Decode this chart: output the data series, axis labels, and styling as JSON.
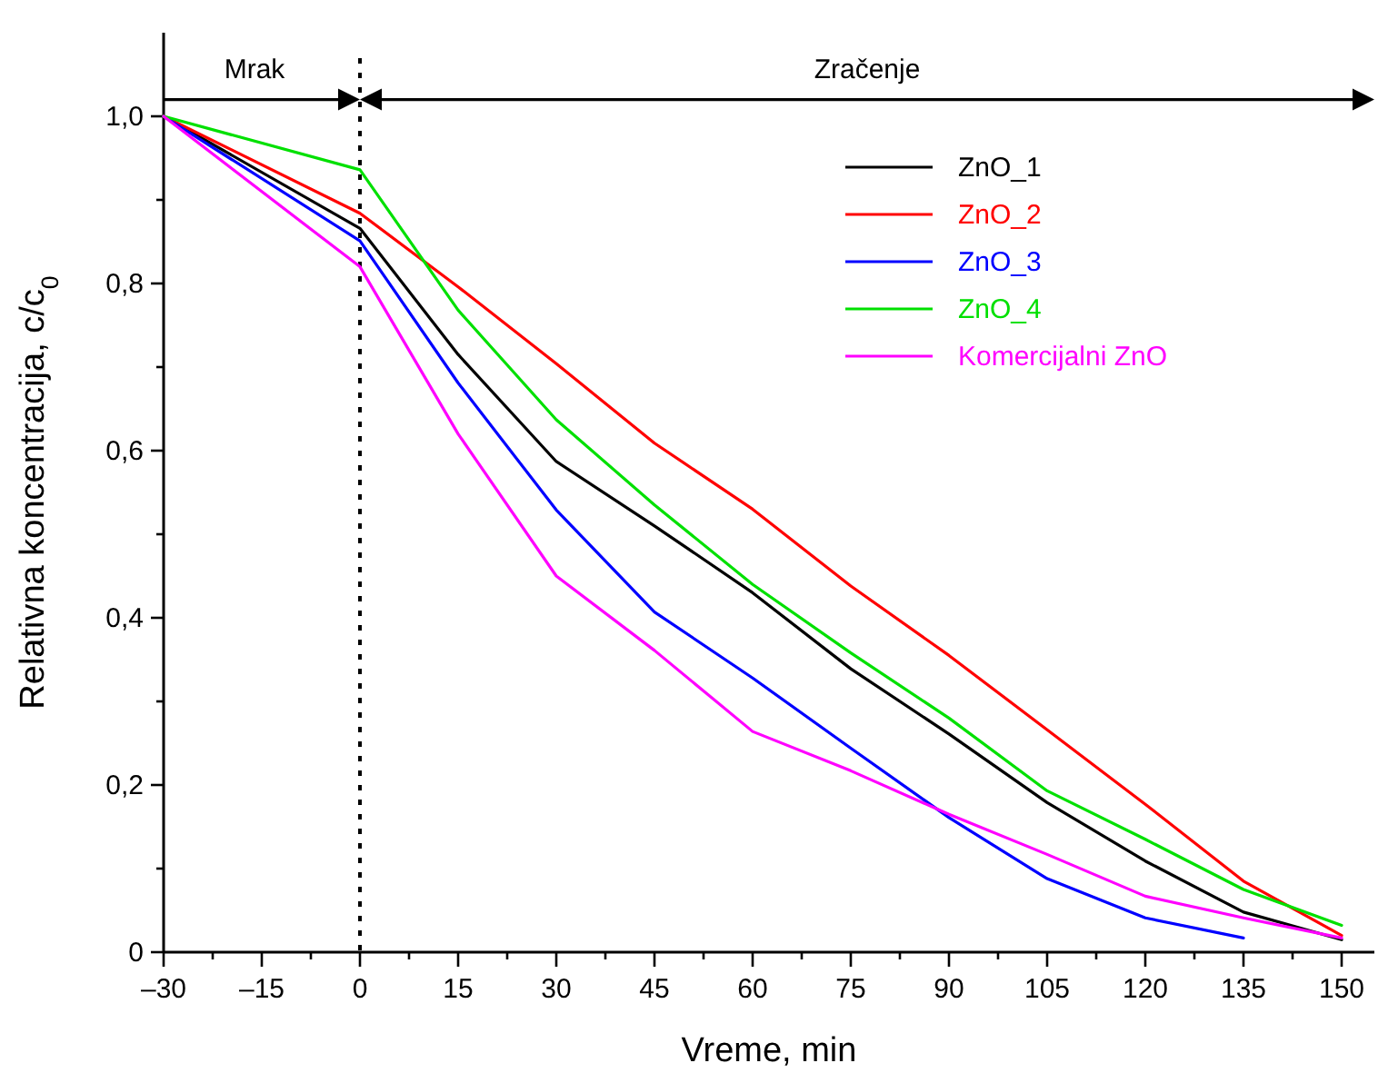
{
  "chart_data": {
    "type": "line",
    "xlabel": "Vreme, min",
    "ylabel": "Relativna koncentracija, c/c$_{0}$",
    "x": [
      -30,
      0,
      15,
      30,
      45,
      60,
      75,
      90,
      105,
      120,
      135,
      150
    ],
    "xlim": [
      -30,
      155
    ],
    "ylim": [
      0,
      1.1
    ],
    "xticks": [
      {
        "value": -30,
        "label": "–30"
      },
      {
        "value": -22.5,
        "label": null
      },
      {
        "value": -15,
        "label": "–15"
      },
      {
        "value": -7.5,
        "label": null
      },
      0,
      {
        "value": 7.5,
        "label": null
      },
      15,
      {
        "value": 22.5,
        "label": null
      },
      30,
      {
        "value": 37.5,
        "label": null
      },
      45,
      {
        "value": 52.5,
        "label": null
      },
      60,
      {
        "value": 67.5,
        "label": null
      },
      75,
      {
        "value": 82.5,
        "label": null
      },
      90,
      {
        "value": 97.5,
        "label": null
      },
      105,
      {
        "value": 112.5,
        "label": null
      },
      120,
      {
        "value": 127.5,
        "label": null
      },
      135,
      {
        "value": 142.5,
        "label": null
      },
      150
    ],
    "yticks": [
      {
        "value": 0,
        "label": "0"
      },
      {
        "value": 0.1,
        "label": null
      },
      {
        "value": 0.2,
        "label": "0,2"
      },
      {
        "value": 0.3,
        "label": null
      },
      {
        "value": 0.4,
        "label": "0,4"
      },
      {
        "value": 0.5,
        "label": null
      },
      {
        "value": 0.6,
        "label": "0,6"
      },
      {
        "value": 0.7,
        "label": null
      },
      {
        "value": 0.8,
        "label": "0,8"
      },
      {
        "value": 0.9,
        "label": null
      },
      {
        "value": 1.0,
        "label": "1,0"
      }
    ],
    "series": [
      {
        "name": "ZnO_1",
        "color": "#000000",
        "values": [
          1.0,
          0.866,
          0.715,
          0.587,
          0.51,
          0.43,
          0.339,
          0.261,
          0.179,
          0.109,
          0.048,
          0.015
        ]
      },
      {
        "name": "ZnO_2",
        "color": "#ff0000",
        "values": [
          1.0,
          0.884,
          0.796,
          0.704,
          0.609,
          0.53,
          0.438,
          0.355,
          0.266,
          0.177,
          0.085,
          0.02
        ]
      },
      {
        "name": "ZnO_3",
        "color": "#0000ff",
        "values": [
          1.0,
          0.851,
          0.681,
          0.529,
          0.407,
          0.328,
          0.244,
          0.161,
          0.088,
          0.041,
          0.017,
          null
        ]
      },
      {
        "name": "ZnO_4",
        "color": "#00e000",
        "values": [
          1.0,
          0.936,
          0.768,
          0.637,
          0.535,
          0.44,
          0.358,
          0.28,
          0.193,
          0.135,
          0.075,
          0.032
        ]
      },
      {
        "name": "Komercijalni ZnO",
        "color": "#ff00ff",
        "values": [
          1.0,
          0.82,
          0.62,
          0.45,
          0.361,
          0.264,
          0.217,
          0.165,
          0.117,
          0.067,
          0.041,
          0.017
        ]
      }
    ],
    "ref_lines": [
      {
        "axis": "x",
        "value": 0,
        "color": "#000000",
        "line_style": "dotted"
      }
    ],
    "annotations": [
      "Mrak",
      "Zračenje"
    ],
    "legend": "top right",
    "grid": false,
    "marker": "none",
    "line_style": "solid"
  }
}
